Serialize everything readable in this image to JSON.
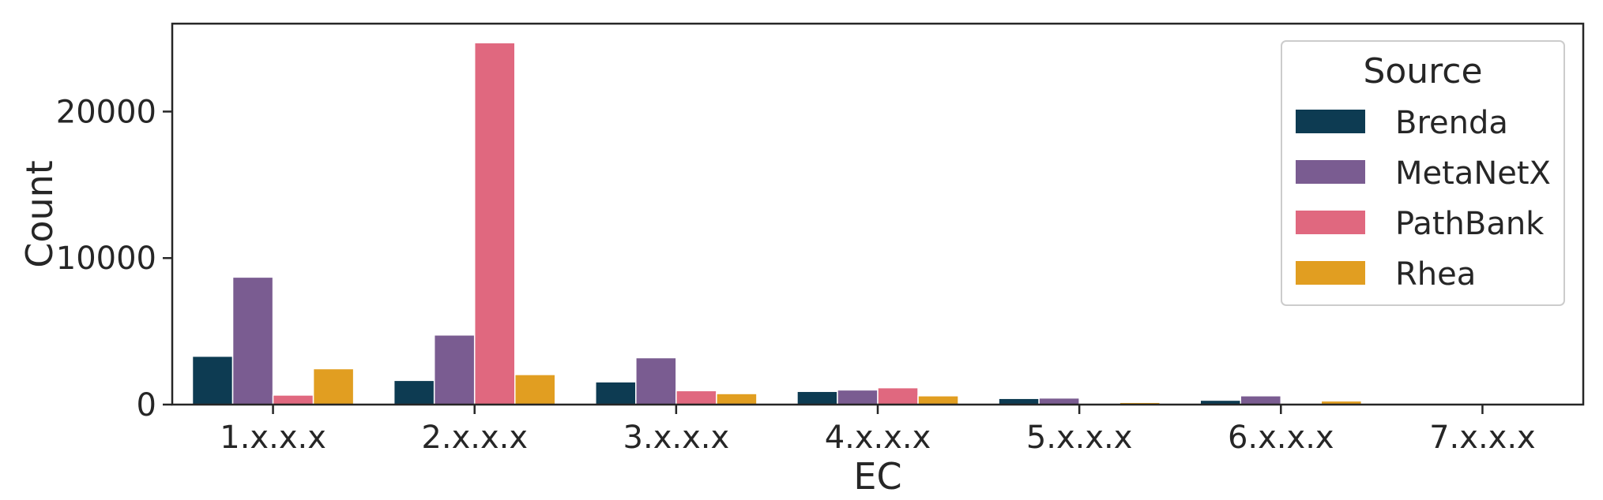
{
  "chart_data": {
    "type": "bar",
    "title": "",
    "xlabel": "EC",
    "ylabel": "Count",
    "categories": [
      "1.x.x.x",
      "2.x.x.x",
      "3.x.x.x",
      "4.x.x.x",
      "5.x.x.x",
      "6.x.x.x",
      "7.x.x.x"
    ],
    "series": [
      {
        "name": "Brenda",
        "color": "#0d3b52",
        "values": [
          3300,
          1650,
          1550,
          900,
          420,
          300,
          0
        ]
      },
      {
        "name": "MetaNetX",
        "color": "#7a5c91",
        "values": [
          8700,
          4750,
          3200,
          1000,
          450,
          600,
          0
        ]
      },
      {
        "name": "PathBank",
        "color": "#e0687f",
        "values": [
          650,
          24700,
          950,
          1150,
          0,
          0,
          0
        ]
      },
      {
        "name": "Rhea",
        "color": "#e19e21",
        "values": [
          2450,
          2050,
          750,
          600,
          150,
          250,
          0
        ]
      }
    ],
    "ylim": [
      0,
      26000
    ],
    "yticks": [
      0,
      10000,
      20000
    ],
    "grid": false,
    "legend": {
      "title": "Source",
      "placement": "top-right"
    }
  }
}
